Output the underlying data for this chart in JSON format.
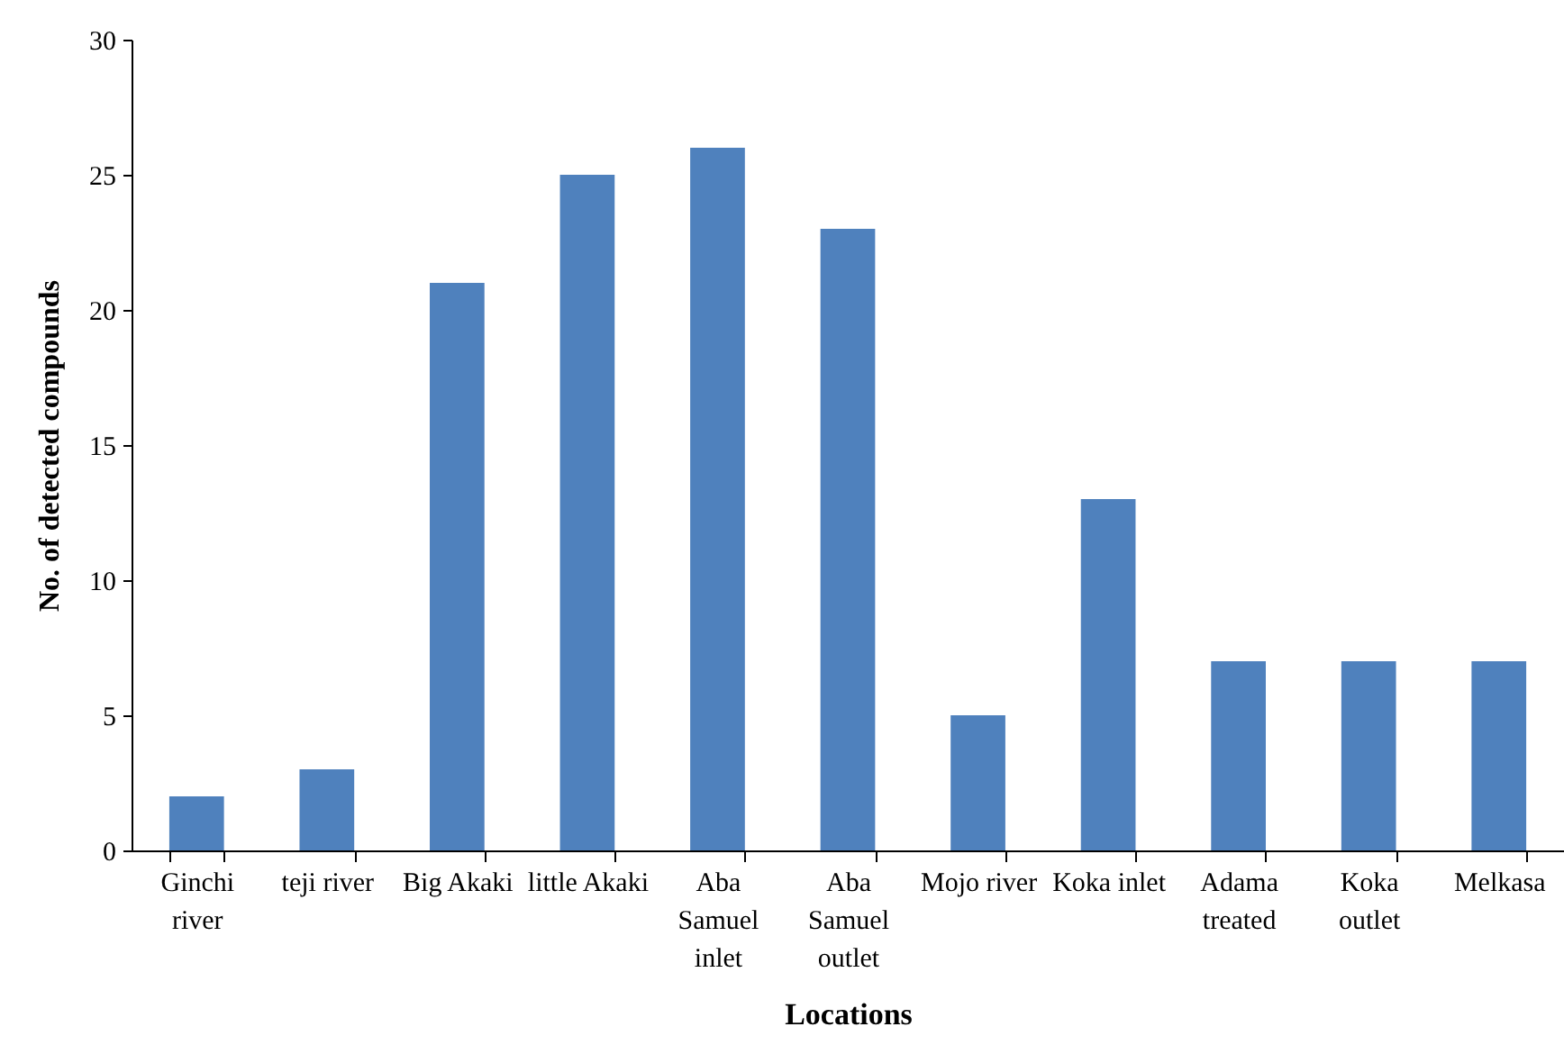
{
  "chart_data": {
    "type": "bar",
    "xlabel": "Locations",
    "ylabel": "No. of detected compounds",
    "categories": [
      "Ginchi river",
      "teji river",
      "Big Akaki",
      "little Akaki",
      "Aba Samuel inlet",
      "Aba Samuel outlet",
      "Mojo river",
      "Koka inlet",
      "Adama treated",
      "Koka outlet",
      "Melkasa"
    ],
    "values": [
      2,
      3,
      21,
      25,
      26,
      23,
      5,
      13,
      7,
      7,
      7
    ],
    "color": "#4f81bd",
    "ylim": [
      0,
      30
    ],
    "yticks": [
      0,
      5,
      10,
      15,
      20,
      25,
      30
    ],
    "grid": false
  }
}
